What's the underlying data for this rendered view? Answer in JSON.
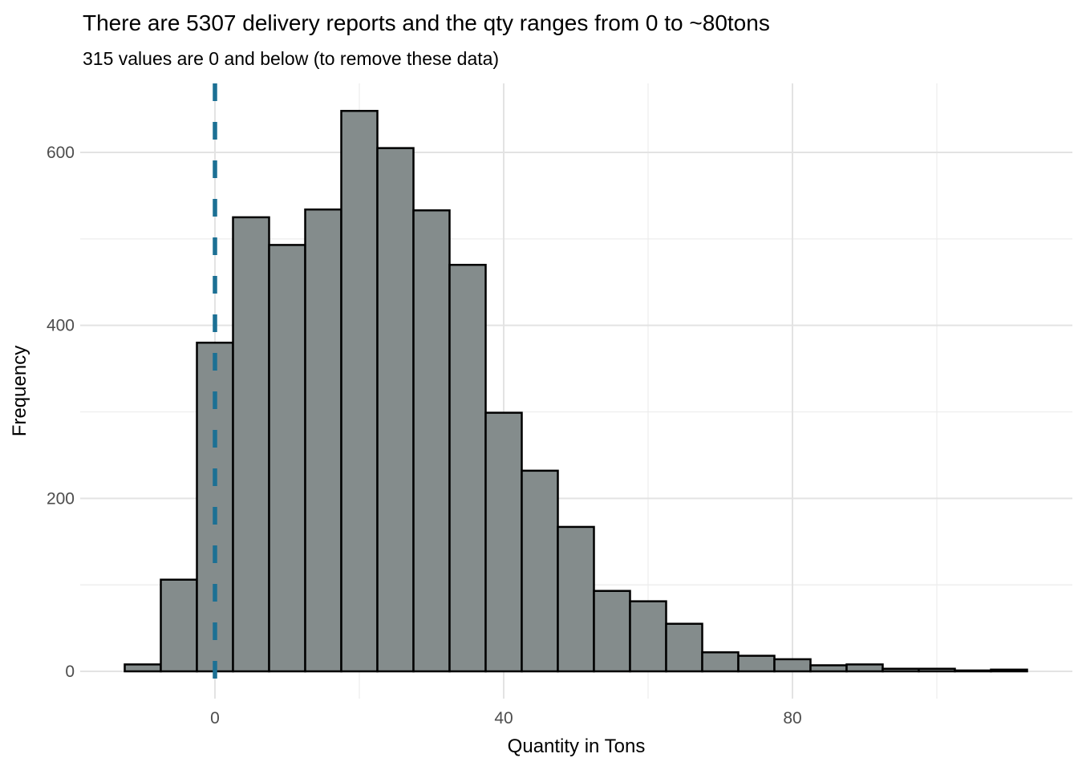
{
  "chart_data": {
    "type": "bar",
    "subtype": "histogram",
    "title": "There are 5307 delivery reports and the qty ranges from 0 to ~80tons",
    "subtitle": "315 values are 0 and below (to remove these data)",
    "xlabel": "Quantity in Tons",
    "ylabel": "Frequency",
    "bin_width": 5,
    "bin_centers": [
      -10,
      -5,
      0,
      5,
      10,
      15,
      20,
      25,
      30,
      35,
      40,
      45,
      50,
      55,
      60,
      65,
      70,
      75,
      80,
      85,
      90,
      95,
      100,
      105,
      110
    ],
    "counts": [
      8,
      106,
      380,
      525,
      493,
      534,
      648,
      605,
      533,
      470,
      299,
      232,
      167,
      93,
      81,
      55,
      22,
      18,
      14,
      7,
      8,
      3,
      3,
      1,
      2
    ],
    "x_ticks": [
      0,
      40,
      80
    ],
    "y_ticks": [
      0,
      200,
      400,
      600
    ],
    "grid": {
      "x_minor": [
        20,
        60,
        100
      ],
      "y_minor": [
        100,
        300,
        500
      ],
      "show": true
    },
    "xlim": [
      -18.75,
      118.75
    ],
    "ylim": [
      -32,
      680
    ],
    "vline_x": 0,
    "vline_style": "dashed",
    "legend": "none",
    "colors": {
      "bar_fill": "#848C8C",
      "bar_stroke": "#000000",
      "vline": "#1C7094",
      "grid_major": "#E3E3E3",
      "grid_minor": "#EDEDED",
      "tick_label": "#4D4D4D",
      "axis_title": "#000000",
      "title_text": "#000000",
      "background": "#FFFFFF"
    }
  }
}
